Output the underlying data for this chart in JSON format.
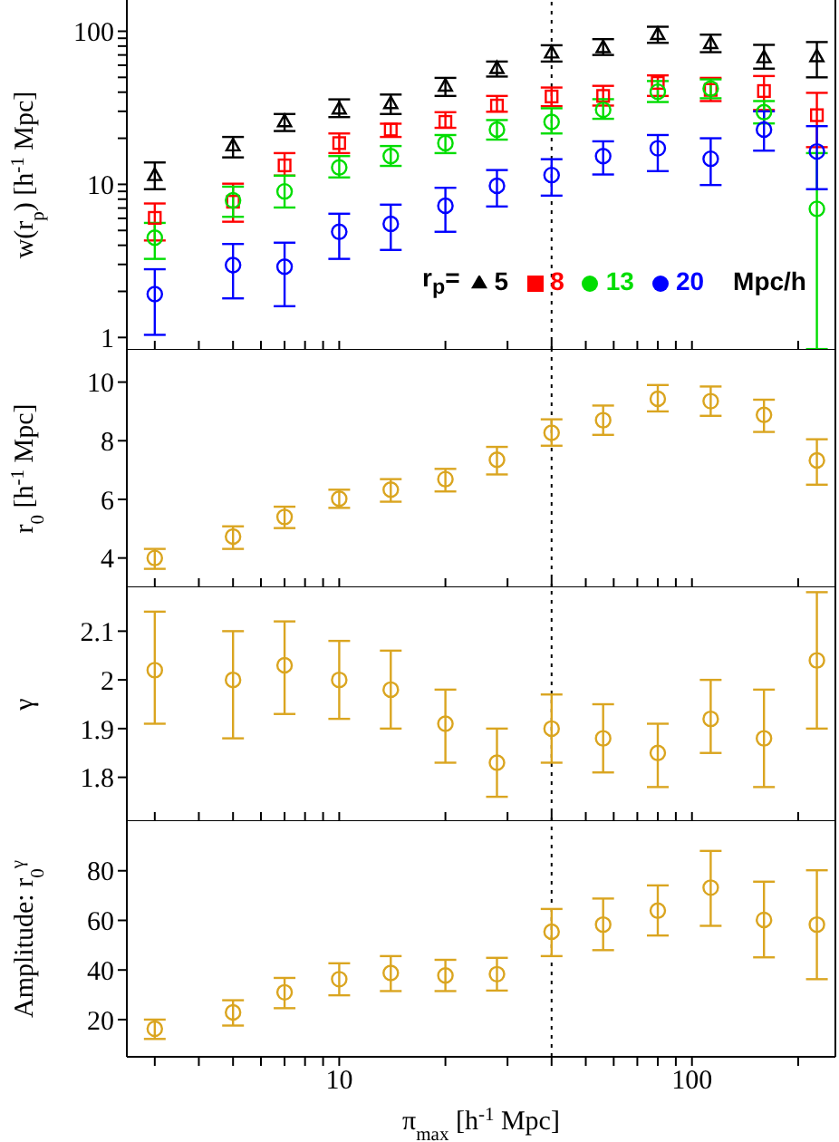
{
  "chart_data": [
    {
      "type": "scatter",
      "ylabel": "w(r$_{p}$) [h$^{-1}$ Mpc]",
      "log": "xy",
      "legend": "bottom right",
      "legend_title": "r$_{p}$=",
      "annotations": [
        "Mpc/h"
      ],
      "tick_labels": "y",
      "x": [
        3,
        5,
        7,
        10,
        14,
        20,
        28,
        40,
        56,
        80,
        113,
        160,
        226
      ],
      "xlim": [
        2.5,
        255
      ],
      "xticks": [
        {
          "value": 3,
          "label": null
        },
        {
          "value": 4,
          "label": null
        },
        {
          "value": 5,
          "label": null
        },
        {
          "value": 6,
          "label": null
        },
        {
          "value": 7,
          "label": null
        },
        {
          "value": 8,
          "label": null
        },
        {
          "value": 9,
          "label": null
        },
        {
          "value": 10,
          "label": null
        },
        {
          "value": 20,
          "label": null
        },
        {
          "value": 30,
          "label": null
        },
        {
          "value": 40,
          "label": null
        },
        {
          "value": 50,
          "label": null
        },
        {
          "value": 60,
          "label": null
        },
        {
          "value": 70,
          "label": null
        },
        {
          "value": 80,
          "label": null
        },
        {
          "value": 90,
          "label": null
        },
        {
          "value": 100,
          "label": null
        },
        {
          "value": 200,
          "label": null
        }
      ],
      "ylim": [
        0.83,
        160
      ],
      "yticks": [
        1,
        {
          "value": 2,
          "label": null
        },
        {
          "value": 3,
          "label": null
        },
        {
          "value": 4,
          "label": null
        },
        {
          "value": 5,
          "label": null
        },
        {
          "value": 6,
          "label": null
        },
        {
          "value": 7,
          "label": null
        },
        {
          "value": 8,
          "label": null
        },
        {
          "value": 9,
          "label": null
        },
        10,
        {
          "value": 20,
          "label": null
        },
        {
          "value": 30,
          "label": null
        },
        {
          "value": 40,
          "label": null
        },
        {
          "value": 50,
          "label": null
        },
        {
          "value": 60,
          "label": null
        },
        {
          "value": 70,
          "label": null
        },
        {
          "value": 80,
          "label": null
        },
        {
          "value": 90,
          "label": null
        },
        100
      ],
      "ref_lines": [
        {
          "axis": "x",
          "value": 40,
          "color": "#000000",
          "line_style": "dotted"
        }
      ],
      "series": [
        {
          "name": "5",
          "color": "#000000",
          "marker": "triangle",
          "values": [
            11.4,
            17.8,
            25.6,
            31,
            33.6,
            43.7,
            57,
            72,
            78,
            95,
            83,
            67,
            68
          ],
          "errors": [
            [
              9.3,
              13.9
            ],
            [
              15,
              20.4
            ],
            [
              22.3,
              28.8
            ],
            [
              27.5,
              35.9
            ],
            [
              28.8,
              38.6
            ],
            [
              37.8,
              49.6
            ],
            [
              50.6,
              63.4
            ],
            [
              63.4,
              81
            ],
            [
              70,
              88.8
            ],
            [
              84,
              107
            ],
            [
              73,
              95
            ],
            [
              57,
              81.5
            ],
            [
              50,
              85
            ]
          ]
        },
        {
          "name": "8",
          "color": "#ff0000",
          "marker": "square",
          "values": [
            6.04,
            7.7,
            13.3,
            18.6,
            22.8,
            25.6,
            32.7,
            37.5,
            37.8,
            46,
            41.4,
            40.7,
            28.3
          ],
          "errors": [
            [
              4.3,
              7.5
            ],
            [
              5.7,
              10.1
            ],
            [
              11.4,
              16
            ],
            [
              16,
              21.5
            ],
            [
              20.4,
              24.9
            ],
            [
              23.4,
              29.6
            ],
            [
              29.8,
              37.8
            ],
            [
              32.4,
              42.9
            ],
            [
              32.7,
              44
            ],
            [
              37.8,
              51.5
            ],
            [
              35,
              49.6
            ],
            [
              30.6,
              51
            ],
            [
              17.5,
              39.6
            ]
          ]
        },
        {
          "name": "13",
          "color": "#00dd00",
          "marker": "circle",
          "values": [
            4.48,
            7.86,
            9,
            12.9,
            15.3,
            18.6,
            22.8,
            25.6,
            30.7,
            40.3,
            42.2,
            29.6,
            6.92
          ],
          "errors": [
            [
              3.26,
              5.6
            ],
            [
              6.14,
              9.66
            ],
            [
              7.06,
              11.4
            ],
            [
              11.1,
              15.3
            ],
            [
              13.2,
              17.8
            ],
            [
              16,
              21
            ],
            [
              19.6,
              26.3
            ],
            [
              21.5,
              31.4
            ],
            [
              26.8,
              36
            ],
            [
              34.5,
              47.3
            ],
            [
              36.5,
              48.5
            ],
            [
              25,
              35
            ],
            [
              0.84,
              16
            ]
          ]
        },
        {
          "name": "20",
          "color": "#0000ff",
          "marker": "circle",
          "values": [
            1.92,
            2.97,
            2.9,
            4.9,
            5.52,
            7.25,
            9.78,
            11.5,
            15.3,
            17.2,
            14.7,
            22.8,
            16.4
          ],
          "errors": [
            [
              1.04,
              2.79
            ],
            [
              1.8,
              4.08
            ],
            [
              1.6,
              4.16
            ],
            [
              3.26,
              6.43
            ],
            [
              3.73,
              7.37
            ],
            [
              4.9,
              9.5
            ],
            [
              7.17,
              12.4
            ],
            [
              8.44,
              14.6
            ],
            [
              11.6,
              19.1
            ],
            [
              12.2,
              21
            ],
            [
              9.9,
              20
            ],
            [
              16.6,
              30
            ],
            [
              9.3,
              24
            ]
          ]
        }
      ]
    },
    {
      "type": "scatter",
      "ylabel": "r$_{0}$ [h$^{-1}$ Mpc]",
      "log": "x",
      "tick_labels": "y",
      "marker": "circle",
      "color": "#daa520",
      "x": [
        3,
        5,
        7,
        10,
        14,
        20,
        28,
        40,
        56,
        80,
        113,
        160,
        226
      ],
      "xlim": [
        2.5,
        255
      ],
      "xticks": [
        {
          "value": 3,
          "label": null
        },
        {
          "value": 4,
          "label": null
        },
        {
          "value": 5,
          "label": null
        },
        {
          "value": 6,
          "label": null
        },
        {
          "value": 7,
          "label": null
        },
        {
          "value": 8,
          "label": null
        },
        {
          "value": 9,
          "label": null
        },
        {
          "value": 10,
          "label": null
        },
        {
          "value": 20,
          "label": null
        },
        {
          "value": 30,
          "label": null
        },
        {
          "value": 40,
          "label": null
        },
        {
          "value": 50,
          "label": null
        },
        {
          "value": 60,
          "label": null
        },
        {
          "value": 70,
          "label": null
        },
        {
          "value": 80,
          "label": null
        },
        {
          "value": 90,
          "label": null
        },
        {
          "value": 100,
          "label": null
        },
        {
          "value": 200,
          "label": null
        }
      ],
      "ylim": [
        3,
        11.1
      ],
      "yticks": [
        4,
        6,
        8,
        10
      ],
      "ref_lines": [
        {
          "axis": "x",
          "value": 40,
          "color": "#000000",
          "line_style": "dotted"
        }
      ],
      "values": [
        4.0,
        4.73,
        5.4,
        6.02,
        6.33,
        6.69,
        7.35,
        8.27,
        8.7,
        9.43,
        9.35,
        8.88,
        7.33
      ],
      "errors": [
        [
          3.63,
          4.31
        ],
        [
          4.31,
          5.08
        ],
        [
          5.02,
          5.75
        ],
        [
          5.71,
          6.33
        ],
        [
          5.92,
          6.69
        ],
        [
          6.27,
          7.04
        ],
        [
          6.85,
          7.79
        ],
        [
          7.83,
          8.73
        ],
        [
          8.2,
          9.2
        ],
        [
          9.0,
          9.9
        ],
        [
          8.85,
          9.85
        ],
        [
          8.3,
          9.4
        ],
        [
          6.5,
          8.05
        ]
      ]
    },
    {
      "type": "scatter",
      "ylabel": "γ",
      "log": "x",
      "tick_labels": "y",
      "marker": "circle",
      "color": "#daa520",
      "x": [
        3,
        5,
        7,
        10,
        14,
        20,
        28,
        40,
        56,
        80,
        113,
        160,
        226
      ],
      "xlim": [
        2.5,
        255
      ],
      "xticks": [
        {
          "value": 3,
          "label": null
        },
        {
          "value": 4,
          "label": null
        },
        {
          "value": 5,
          "label": null
        },
        {
          "value": 6,
          "label": null
        },
        {
          "value": 7,
          "label": null
        },
        {
          "value": 8,
          "label": null
        },
        {
          "value": 9,
          "label": null
        },
        {
          "value": 10,
          "label": null
        },
        {
          "value": 20,
          "label": null
        },
        {
          "value": 30,
          "label": null
        },
        {
          "value": 40,
          "label": null
        },
        {
          "value": 50,
          "label": null
        },
        {
          "value": 60,
          "label": null
        },
        {
          "value": 70,
          "label": null
        },
        {
          "value": 80,
          "label": null
        },
        {
          "value": 90,
          "label": null
        },
        {
          "value": 100,
          "label": null
        },
        {
          "value": 200,
          "label": null
        }
      ],
      "ylim": [
        1.71,
        2.19
      ],
      "yticks": [
        1.8,
        1.9,
        2,
        2.1
      ],
      "ref_lines": [
        {
          "axis": "x",
          "value": 40,
          "color": "#000000",
          "line_style": "dotted"
        }
      ],
      "values": [
        2.02,
        2.0,
        2.03,
        2.0,
        1.98,
        1.91,
        1.83,
        1.9,
        1.88,
        1.85,
        1.92,
        1.88,
        2.04
      ],
      "errors": [
        [
          1.91,
          2.14
        ],
        [
          1.88,
          2.1
        ],
        [
          1.93,
          2.12
        ],
        [
          1.92,
          2.08
        ],
        [
          1.9,
          2.06
        ],
        [
          1.83,
          1.98
        ],
        [
          1.76,
          1.9
        ],
        [
          1.83,
          1.97
        ],
        [
          1.81,
          1.95
        ],
        [
          1.78,
          1.91
        ],
        [
          1.85,
          2.0
        ],
        [
          1.78,
          1.98
        ],
        [
          1.9,
          2.18
        ]
      ]
    },
    {
      "type": "scatter",
      "ylabel": "Amplitude: r$_{0}$$^{γ}$",
      "xlabel": "π$_{max}$ [h$^{-1}$ Mpc]",
      "log": "x",
      "marker": "circle",
      "color": "#daa520",
      "x": [
        3,
        5,
        7,
        10,
        14,
        20,
        28,
        40,
        56,
        80,
        113,
        160,
        226
      ],
      "xlim": [
        2.5,
        255
      ],
      "xticks": [
        {
          "value": 3,
          "label": null
        },
        {
          "value": 4,
          "label": null
        },
        {
          "value": 5,
          "label": null
        },
        {
          "value": 6,
          "label": null
        },
        {
          "value": 7,
          "label": null
        },
        {
          "value": 8,
          "label": null
        },
        {
          "value": 9,
          "label": null
        },
        {
          "value": 10,
          "label": "10"
        },
        {
          "value": 20,
          "label": null
        },
        {
          "value": 30,
          "label": null
        },
        {
          "value": 40,
          "label": null
        },
        {
          "value": 50,
          "label": null
        },
        {
          "value": 60,
          "label": null
        },
        {
          "value": 70,
          "label": null
        },
        {
          "value": 80,
          "label": null
        },
        {
          "value": 90,
          "label": null
        },
        {
          "value": 100,
          "label": "100"
        },
        {
          "value": 200,
          "label": null
        }
      ],
      "ylim": [
        5,
        100
      ],
      "yticks": [
        20,
        40,
        60,
        80
      ],
      "ref_lines": [
        {
          "axis": "x",
          "value": 40,
          "color": "#000000",
          "line_style": "dotted"
        }
      ],
      "values": [
        16.3,
        22.9,
        31,
        36.3,
        38.8,
        37.8,
        38.3,
        55.4,
        58.3,
        63.9,
        73.2,
        60.2,
        58.3
      ],
      "errors": [
        [
          12.2,
          20
        ],
        [
          17.6,
          27.8
        ],
        [
          24.6,
          36.8
        ],
        [
          29.8,
          42.7
        ],
        [
          31.5,
          45.6
        ],
        [
          31.5,
          44.1
        ],
        [
          31.7,
          44.9
        ],
        [
          45.6,
          64.6
        ],
        [
          48,
          68.8
        ],
        [
          53.9,
          74.1
        ],
        [
          57.8,
          88
        ],
        [
          45.1,
          75.6
        ],
        [
          36.3,
          80.2
        ]
      ]
    }
  ]
}
